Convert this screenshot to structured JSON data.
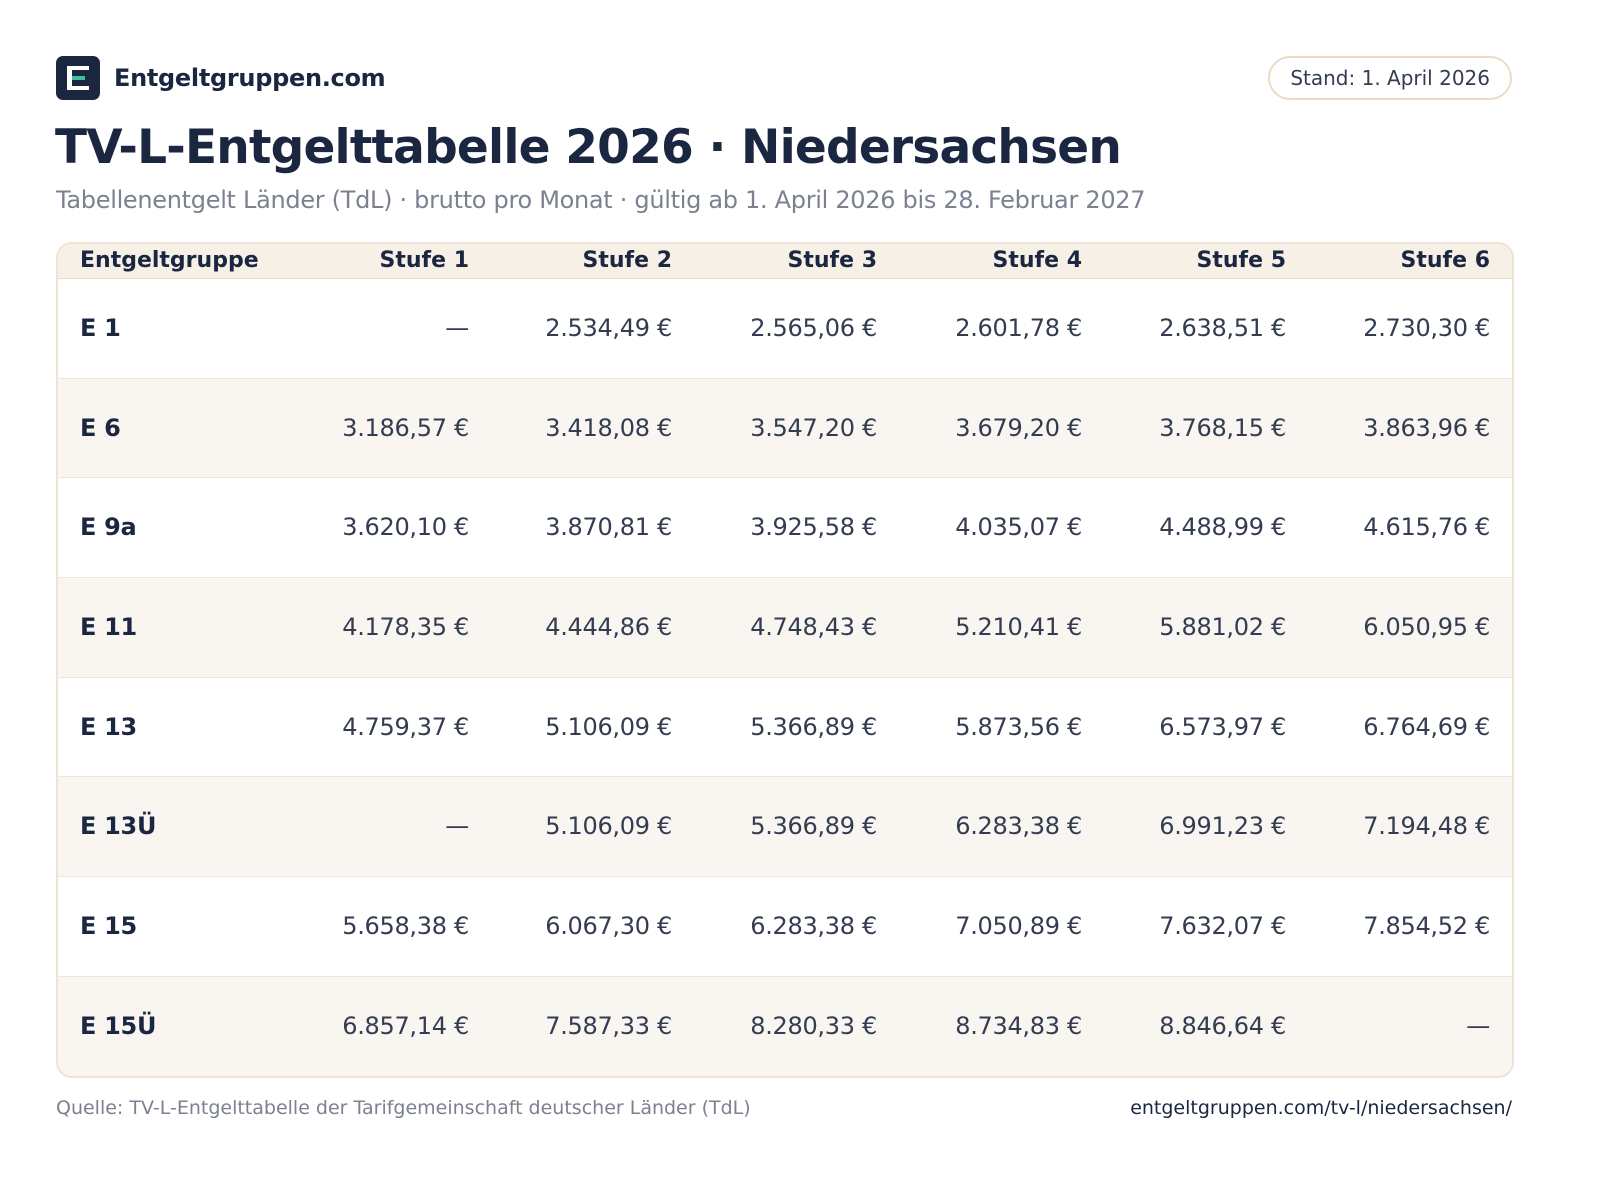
{
  "header": {
    "brand": "Entgeltgruppen.com",
    "stand": "Stand: 1. April 2026",
    "title": "TV-L-Entgelttabelle 2026 · Niedersachsen",
    "subtitle": "Tabellenentgelt Länder (TdL) · brutto pro Monat · gültig ab 1. April 2026 bis 28. Februar 2027"
  },
  "table": {
    "columns": [
      "Entgeltgruppe",
      "Stufe 1",
      "Stufe 2",
      "Stufe 3",
      "Stufe 4",
      "Stufe 5",
      "Stufe 6"
    ],
    "rows": [
      [
        "E 1",
        "—",
        "2.534,49 €",
        "2.565,06 €",
        "2.601,78 €",
        "2.638,51 €",
        "2.730,30 €"
      ],
      [
        "E 6",
        "3.186,57 €",
        "3.418,08 €",
        "3.547,20 €",
        "3.679,20 €",
        "3.768,15 €",
        "3.863,96 €"
      ],
      [
        "E 9a",
        "3.620,10 €",
        "3.870,81 €",
        "3.925,58 €",
        "4.035,07 €",
        "4.488,99 €",
        "4.615,76 €"
      ],
      [
        "E 11",
        "4.178,35 €",
        "4.444,86 €",
        "4.748,43 €",
        "5.210,41 €",
        "5.881,02 €",
        "6.050,95 €"
      ],
      [
        "E 13",
        "4.759,37 €",
        "5.106,09 €",
        "5.366,89 €",
        "5.873,56 €",
        "6.573,97 €",
        "6.764,69 €"
      ],
      [
        "E 13Ü",
        "—",
        "5.106,09 €",
        "5.366,89 €",
        "6.283,38 €",
        "6.991,23 €",
        "7.194,48 €"
      ],
      [
        "E 15",
        "5.658,38 €",
        "6.067,30 €",
        "6.283,38 €",
        "7.050,89 €",
        "7.632,07 €",
        "7.854,52 €"
      ],
      [
        "E 15Ü",
        "6.857,14 €",
        "7.587,33 €",
        "8.280,33 €",
        "8.734,83 €",
        "8.846,64 €",
        "—"
      ]
    ]
  },
  "footer": {
    "source": "Quelle: TV-L-Entgelttabelle der Tarifgemeinschaft deutscher Länder (TdL)",
    "url": "entgeltgruppen.com/tv-l/niedersachsen/"
  },
  "colors": {
    "navy": "#1b2640",
    "accent_green": "#3fbf9b",
    "header_bg": "#f6f0e6",
    "alt_row_bg": "#f9f6f1",
    "border_beige": "#eadcc6"
  }
}
